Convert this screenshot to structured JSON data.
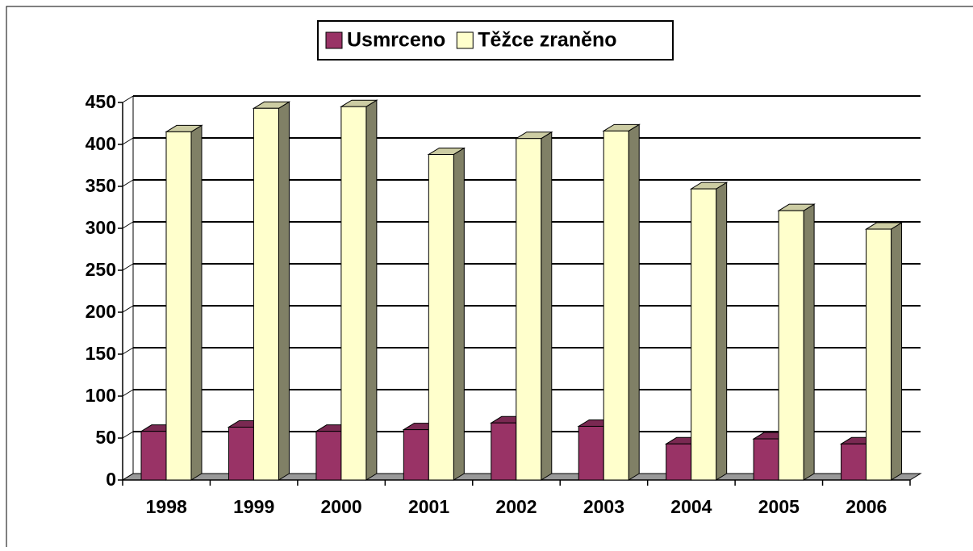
{
  "chart_data": {
    "type": "bar3d",
    "categories": [
      "1998",
      "1999",
      "2000",
      "2001",
      "2002",
      "2003",
      "2004",
      "2005",
      "2006"
    ],
    "series": [
      {
        "name": "Usmrceno",
        "color": "#993366",
        "values": [
          58,
          63,
          58,
          60,
          68,
          64,
          43,
          49,
          43
        ]
      },
      {
        "name": "Těžce zraněno",
        "color": "#ffffcc",
        "values": [
          415,
          443,
          445,
          388,
          407,
          416,
          347,
          321,
          299
        ]
      }
    ],
    "ylim": [
      0,
      450
    ],
    "yticks": [
      0,
      50,
      100,
      150,
      200,
      250,
      300,
      350,
      400,
      450
    ],
    "grid": true,
    "legend": "top"
  }
}
